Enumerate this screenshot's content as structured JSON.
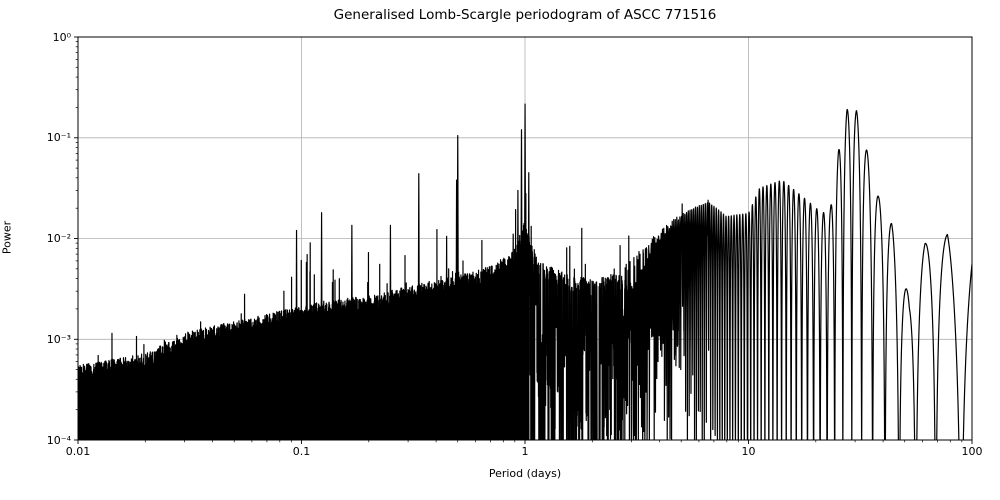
{
  "chart_data": {
    "type": "line",
    "title": "Generalised Lomb-Scargle periodogram of ASCC 771516",
    "xlabel": "Period (days)",
    "ylabel": "Power",
    "xscale": "log",
    "yscale": "log",
    "xlim": [
      0.01,
      100
    ],
    "ylim": [
      0.0001,
      1
    ],
    "x_tick_values": [
      0.01,
      0.1,
      1,
      10,
      100
    ],
    "x_tick_labels": [
      "0.01",
      "0.1",
      "1",
      "10",
      "100"
    ],
    "y_tick_values": [
      1,
      0.1,
      0.01,
      0.001,
      0.0001
    ],
    "y_tick_labels": [
      "10⁰",
      "10⁻¹",
      "10⁻²",
      "10⁻³",
      "10⁻⁴"
    ],
    "grid": true,
    "grid_color": "#b0b0b0",
    "axis_color": "#000000",
    "line_color": "#000000",
    "background_color": "#ffffff",
    "main_peaks": [
      {
        "period": 0.095,
        "power": 0.012
      },
      {
        "period": 0.123,
        "power": 0.018
      },
      {
        "period": 0.168,
        "power": 0.0135
      },
      {
        "period": 0.25,
        "power": 0.0135
      },
      {
        "period": 0.335,
        "power": 0.044
      },
      {
        "period": 0.446,
        "power": 0.0105
      },
      {
        "period": 0.494,
        "power": 0.038
      },
      {
        "period": 0.5,
        "power": 0.105
      },
      {
        "period": 0.93,
        "power": 0.03
      },
      {
        "period": 0.965,
        "power": 0.12
      },
      {
        "period": 1.0,
        "power": 0.216
      },
      {
        "period": 1.04,
        "power": 0.045
      },
      {
        "period": 5.05,
        "power": 0.022
      },
      {
        "period": 6.6,
        "power": 0.024
      },
      {
        "period": 11.6,
        "power": 0.032
      },
      {
        "period": 12.6,
        "power": 0.04
      },
      {
        "period": 14.4,
        "power": 0.038
      },
      {
        "period": 25.3,
        "power": 0.075
      },
      {
        "period": 27.6,
        "power": 0.19
      },
      {
        "period": 30.4,
        "power": 0.185
      },
      {
        "period": 33.9,
        "power": 0.075
      },
      {
        "period": 38.2,
        "power": 0.026
      },
      {
        "period": 43.7,
        "power": 0.014
      },
      {
        "period": 61.7,
        "power": 0.009
      },
      {
        "period": 77.7,
        "power": 0.011
      }
    ],
    "noise_envelope": {
      "log10_period": [
        -2.0,
        -1.7,
        -1.5,
        -1.2,
        -1.0,
        -0.9,
        -0.7,
        -0.52,
        -0.3,
        -0.15,
        -0.05,
        0.0,
        0.06,
        0.2,
        0.3,
        0.4,
        0.6,
        0.73,
        0.82,
        0.9,
        1.0,
        1.05,
        1.15,
        1.25,
        1.33,
        1.367,
        1.403,
        1.441,
        1.483,
        1.53,
        1.582,
        1.64,
        1.67,
        1.72,
        1.79,
        1.89,
        1.95,
        2.0
      ],
      "log10_power_typical": [
        -3.44,
        -3.32,
        -3.1,
        -2.95,
        -2.85,
        -2.8,
        -2.75,
        -2.65,
        -2.55,
        -2.45,
        -2.3,
        -2.0,
        -2.4,
        -2.55,
        -2.58,
        -2.55,
        -2.5,
        -2.45,
        -2.45,
        -2.42,
        -2.4,
        -2.38,
        -2.3,
        -2.45,
        -2.6,
        -2.65,
        -2.7,
        -2.75,
        -2.8,
        -2.85,
        -2.95,
        -3.05,
        -3.15,
        -3.25,
        -3.35,
        -3.45,
        -3.55,
        -3.6
      ],
      "log10_power_spikes": [
        -3.12,
        -2.96,
        -2.72,
        -2.5,
        -2.22,
        -1.96,
        -2.05,
        -1.95,
        -1.7,
        -2.0,
        -1.62,
        -1.3,
        -1.8,
        -1.95,
        -1.9,
        -1.85,
        -1.7,
        -1.64,
        -1.62,
        -1.78,
        -1.75,
        -1.5,
        -1.42,
        -1.6,
        -1.75,
        -1.7,
        -1.13,
        -0.72,
        -0.73,
        -1.13,
        -1.59,
        -1.85,
        -2.2,
        -2.6,
        -2.05,
        -1.96,
        -2.7,
        -2.15
      ]
    },
    "sidelobe_frequency_spacing_per_day": 0.00333
  }
}
